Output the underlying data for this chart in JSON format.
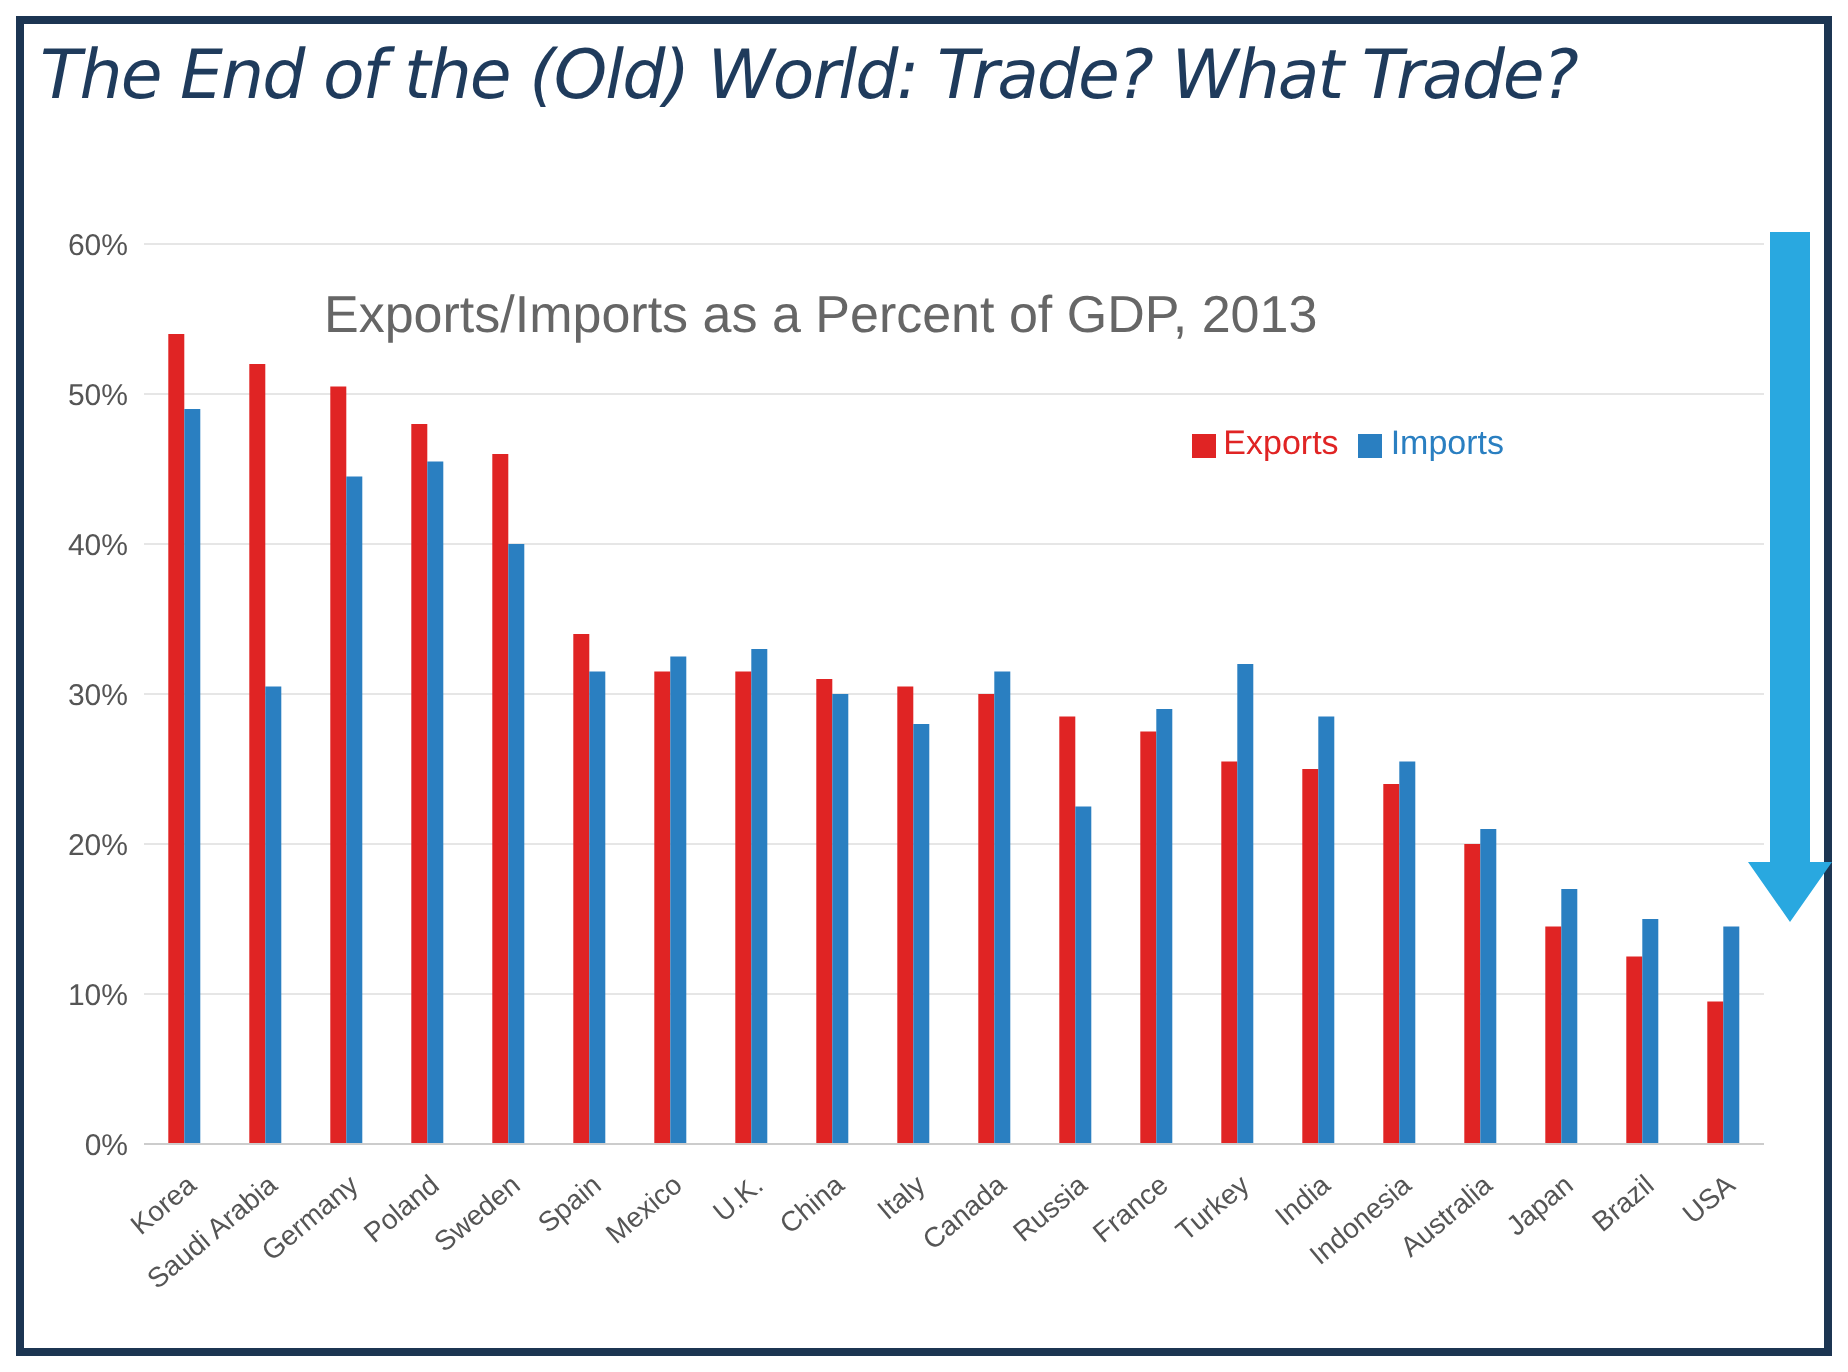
{
  "chart_data": {
    "type": "bar",
    "title": "The End of the (Old) World: Trade? What Trade?",
    "subtitle": "Exports/Imports as a Percent of GDP, 2013",
    "categories": [
      "Korea",
      "Saudi Arabia",
      "Germany",
      "Poland",
      "Sweden",
      "Spain",
      "Mexico",
      "U.K.",
      "China",
      "Italy",
      "Canada",
      "Russia",
      "France",
      "Turkey",
      "India",
      "Indonesia",
      "Australia",
      "Japan",
      "Brazil",
      "USA"
    ],
    "series": [
      {
        "name": "Exports",
        "color": "#e02424",
        "values": [
          54,
          52,
          50.5,
          48,
          46,
          34,
          31.5,
          31.5,
          31,
          30.5,
          30,
          28.5,
          27.5,
          25.5,
          25,
          24,
          20,
          14.5,
          12.5,
          9.5
        ]
      },
      {
        "name": "Imports",
        "color": "#2a7fc1",
        "values": [
          49,
          30.5,
          44.5,
          45.5,
          40,
          31.5,
          32.5,
          33,
          30,
          28,
          31.5,
          22.5,
          29,
          32,
          28.5,
          25.5,
          21,
          17,
          15,
          14.5
        ]
      }
    ],
    "ylim": [
      0,
      60
    ],
    "yticks": [
      {
        "value": 0,
        "label": "0%"
      },
      {
        "value": 10,
        "label": "10%"
      },
      {
        "value": 20,
        "label": "20%"
      },
      {
        "value": 30,
        "label": "30%"
      },
      {
        "value": 40,
        "label": "40%"
      },
      {
        "value": 50,
        "label": "50%"
      },
      {
        "value": 60,
        "label": "60%"
      }
    ],
    "grid": "y",
    "legend": "top right"
  }
}
